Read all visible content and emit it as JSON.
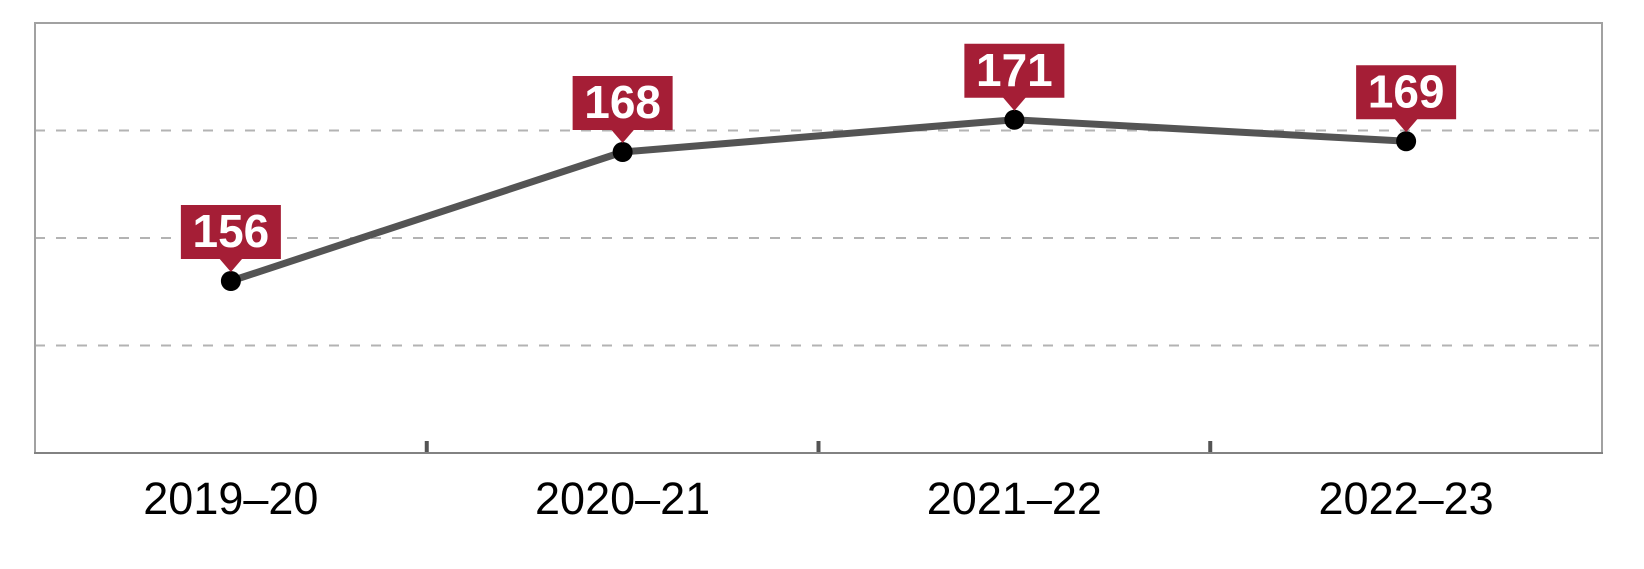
{
  "chart_data": {
    "type": "line",
    "categories": [
      "2019–20",
      "2020–21",
      "2021–22",
      "2022–23"
    ],
    "values": [
      156,
      168,
      171,
      169
    ],
    "data_labels": [
      "156",
      "168",
      "171",
      "169"
    ],
    "title": "",
    "xlabel": "",
    "ylabel": "",
    "ylim": [
      140,
      180
    ],
    "gridlines_y": [
      150,
      160,
      170
    ],
    "grid_style": "dashed-horizontal",
    "legend_position": "none",
    "colors": {
      "line": "#545454",
      "marker": "#000000",
      "label_bg": "#A51E36",
      "label_text": "#FFFFFF",
      "grid": "#B3B3B3",
      "border": "#A1A1A1",
      "axis": "#828282",
      "tick": "#545454",
      "tick_label": "#000000",
      "background": "#FFFFFF"
    }
  }
}
